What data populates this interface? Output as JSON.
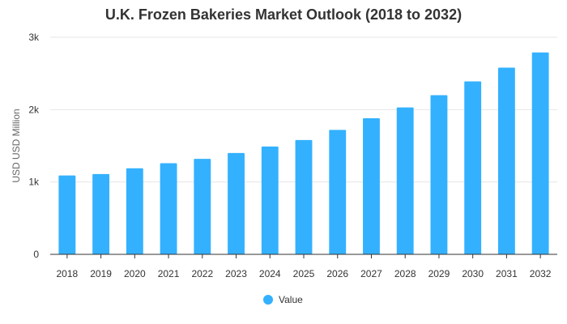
{
  "chart_data": {
    "type": "bar",
    "title": "U.K. Frozen Bakeries Market Outlook (2018 to 2032)",
    "xlabel": "",
    "ylabel": "USD USD Million",
    "categories": [
      "2018",
      "2019",
      "2020",
      "2021",
      "2022",
      "2023",
      "2024",
      "2025",
      "2026",
      "2027",
      "2028",
      "2029",
      "2030",
      "2031",
      "2032"
    ],
    "series": [
      {
        "name": "Value",
        "color": "#33b1ff",
        "values": [
          1090,
          1110,
          1190,
          1260,
          1320,
          1400,
          1490,
          1580,
          1720,
          1880,
          2030,
          2200,
          2390,
          2580,
          2790
        ]
      }
    ],
    "ylim": [
      0,
      3000
    ],
    "yticks": [
      0,
      1000,
      2000,
      3000
    ],
    "ytick_labels": [
      "0",
      "1k",
      "2k",
      "3k"
    ],
    "grid": true,
    "legend_position": "bottom"
  }
}
